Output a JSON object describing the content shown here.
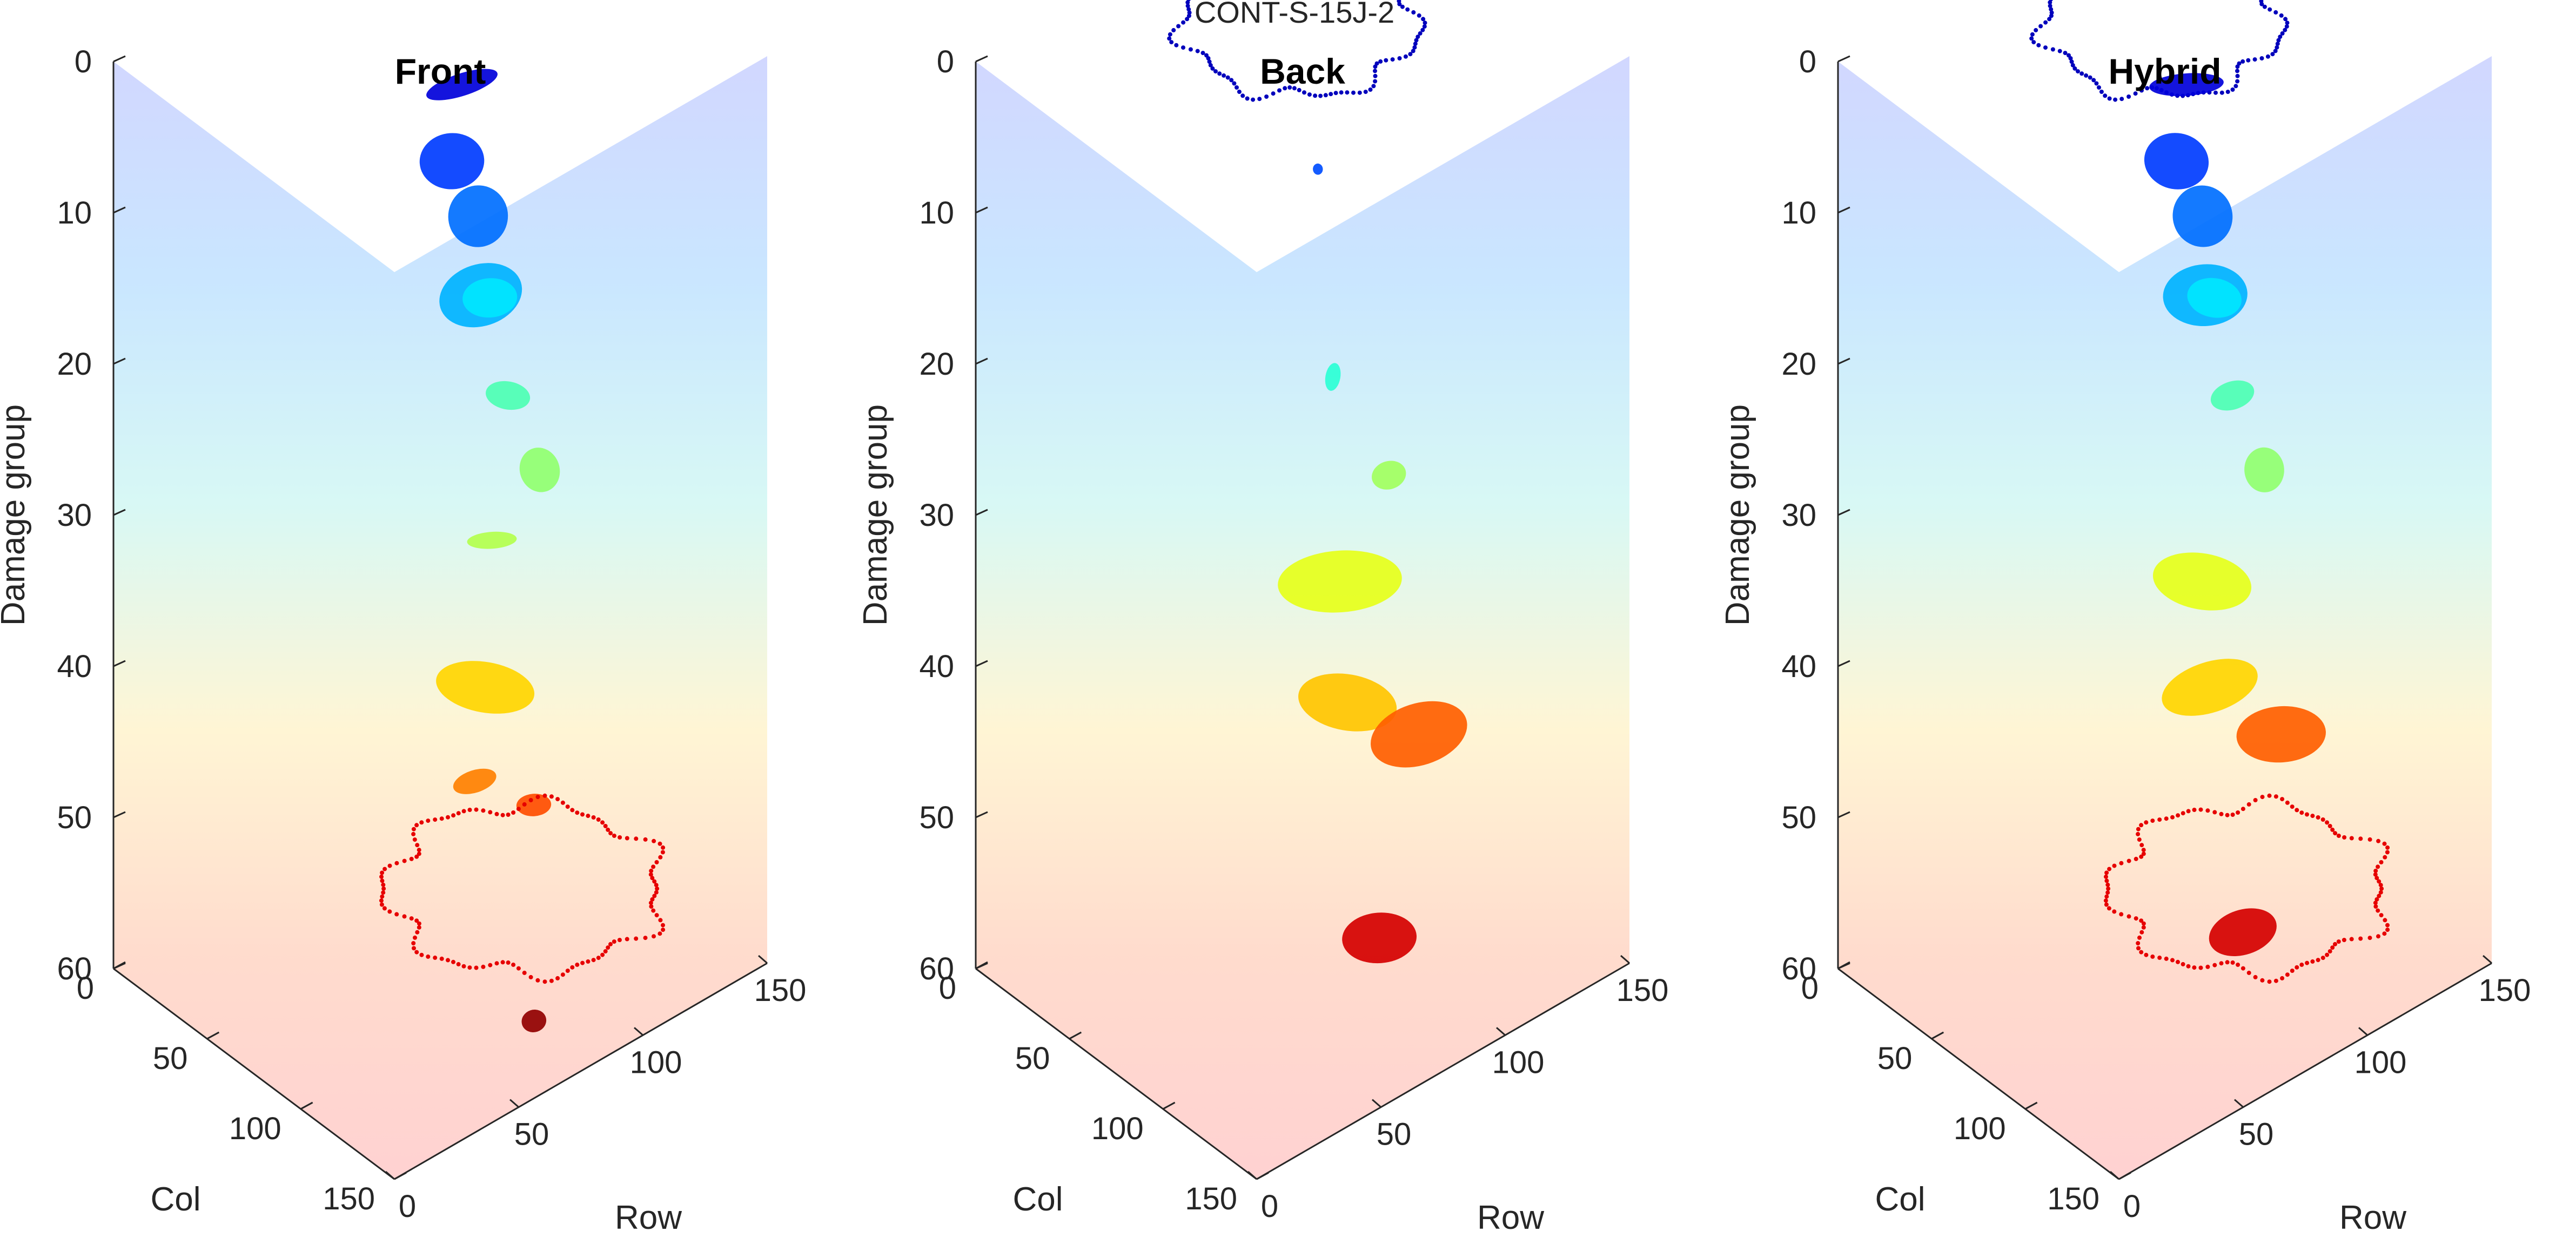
{
  "figure": {
    "title": "CONT-S-15J-2"
  },
  "colors": {
    "axis": "#262626",
    "text": "#262626",
    "colormap": [
      "#00008f",
      "#0000ff",
      "#0080ff",
      "#00ffff",
      "#80ff80",
      "#ffff00",
      "#ff8000",
      "#ff0000",
      "#800000"
    ]
  },
  "chart_data": [
    {
      "type": "scatter3d",
      "title": "Front",
      "xlabel": "Row",
      "ylabel": "Col",
      "zlabel": "Damage group",
      "xlim": [
        0,
        150
      ],
      "ylim": [
        0,
        150
      ],
      "zlim": [
        0,
        60
      ],
      "z_direction": "reversed",
      "xticks": [
        "0",
        "50",
        "100",
        "150"
      ],
      "yticks": [
        "0",
        "50",
        "100",
        "150"
      ],
      "zticks": [
        "0",
        "10",
        "20",
        "30",
        "40",
        "50",
        "60"
      ],
      "colormap": "jet (colored by damage group)",
      "background_volume": true,
      "clusters": [
        {
          "shape": "blob",
          "group": 5,
          "row": 95,
          "col": 60,
          "w": 30,
          "h": 8
        },
        {
          "shape": "blob",
          "group": 11,
          "row": 97,
          "col": 52,
          "w": 26,
          "h": 20
        },
        {
          "shape": "blob",
          "group": 14,
          "row": 100,
          "col": 62,
          "w": 24,
          "h": 22
        },
        {
          "shape": "blob",
          "group": 18,
          "row": 95,
          "col": 70,
          "w": 34,
          "h": 22
        },
        {
          "shape": "blob",
          "group": 21,
          "row": 110,
          "col": 55,
          "w": 22,
          "h": 14
        },
        {
          "shape": "blob",
          "group": 27,
          "row": 112,
          "col": 62,
          "w": 18,
          "h": 10
        },
        {
          "shape": "blob",
          "group": 31,
          "row": 115,
          "col": 75,
          "w": 16,
          "h": 16
        },
        {
          "shape": "blob",
          "group": 33,
          "row": 92,
          "col": 80,
          "w": 20,
          "h": 6
        },
        {
          "shape": "blob",
          "group": 40,
          "row": 78,
          "col": 95,
          "w": 40,
          "h": 18
        },
        {
          "shape": "blob",
          "group": 45,
          "row": 70,
          "col": 100,
          "w": 18,
          "h": 8
        },
        {
          "shape": "blob",
          "group": 48,
          "row": 90,
          "col": 105,
          "w": 14,
          "h": 8
        },
        {
          "shape": "ring",
          "group": 54,
          "row": 90,
          "col": 100,
          "w": 110,
          "h": 60
        },
        {
          "shape": "blob",
          "group": 59,
          "row": 75,
          "col": 125,
          "w": 10,
          "h": 8
        }
      ]
    },
    {
      "type": "scatter3d",
      "title": "Back",
      "xlabel": "Row",
      "ylabel": "Col",
      "zlabel": "Damage group",
      "xlim": [
        0,
        150
      ],
      "ylim": [
        0,
        150
      ],
      "zlim": [
        0,
        60
      ],
      "z_direction": "reversed",
      "xticks": [
        "0",
        "50",
        "100",
        "150"
      ],
      "yticks": [
        "0",
        "50",
        "100",
        "150"
      ],
      "zticks": [
        "0",
        "10",
        "20",
        "30",
        "40",
        "50",
        "60"
      ],
      "colormap": "jet (colored by damage group)",
      "background_volume": true,
      "clusters": [
        {
          "shape": "ring",
          "group": 3,
          "row": 100,
          "col": 40,
          "w": 95,
          "h": 55
        },
        {
          "shape": "blob",
          "group": 12,
          "row": 100,
          "col": 50,
          "w": 4,
          "h": 4
        },
        {
          "shape": "blob",
          "group": 25,
          "row": 100,
          "col": 58,
          "w": 6,
          "h": 10
        },
        {
          "shape": "blob",
          "group": 32,
          "row": 115,
          "col": 68,
          "w": 14,
          "h": 10
        },
        {
          "shape": "blob",
          "group": 36,
          "row": 90,
          "col": 75,
          "w": 50,
          "h": 22
        },
        {
          "shape": "blob",
          "group": 41,
          "row": 78,
          "col": 95,
          "w": 40,
          "h": 20
        },
        {
          "shape": "blob",
          "group": 47,
          "row": 112,
          "col": 88,
          "w": 40,
          "h": 22
        },
        {
          "shape": "blob",
          "group": 55,
          "row": 78,
          "col": 112,
          "w": 30,
          "h": 18
        }
      ]
    },
    {
      "type": "scatter3d",
      "title": "Hybrid",
      "xlabel": "Row",
      "ylabel": "Col",
      "zlabel": "Damage group",
      "xlim": [
        0,
        150
      ],
      "ylim": [
        0,
        150
      ],
      "zlim": [
        0,
        60
      ],
      "z_direction": "reversed",
      "xticks": [
        "0",
        "50",
        "100",
        "150"
      ],
      "yticks": [
        "0",
        "50",
        "100",
        "150"
      ],
      "zticks": [
        "0",
        "10",
        "20",
        "30",
        "40",
        "50",
        "60"
      ],
      "colormap": "jet (colored by damage group)",
      "background_volume": true,
      "clusters": [
        {
          "shape": "ring",
          "group": 3,
          "row": 100,
          "col": 40,
          "w": 95,
          "h": 55
        },
        {
          "shape": "blob",
          "group": 5,
          "row": 95,
          "col": 60,
          "w": 30,
          "h": 8
        },
        {
          "shape": "blob",
          "group": 11,
          "row": 97,
          "col": 52,
          "w": 26,
          "h": 20
        },
        {
          "shape": "blob",
          "group": 14,
          "row": 100,
          "col": 62,
          "w": 24,
          "h": 22
        },
        {
          "shape": "blob",
          "group": 18,
          "row": 95,
          "col": 70,
          "w": 34,
          "h": 22
        },
        {
          "shape": "blob",
          "group": 21,
          "row": 110,
          "col": 55,
          "w": 22,
          "h": 14
        },
        {
          "shape": "blob",
          "group": 27,
          "row": 112,
          "col": 62,
          "w": 18,
          "h": 10
        },
        {
          "shape": "blob",
          "group": 31,
          "row": 115,
          "col": 75,
          "w": 16,
          "h": 16
        },
        {
          "shape": "blob",
          "group": 36,
          "row": 90,
          "col": 75,
          "w": 40,
          "h": 20
        },
        {
          "shape": "blob",
          "group": 40,
          "row": 78,
          "col": 95,
          "w": 40,
          "h": 18
        },
        {
          "shape": "blob",
          "group": 47,
          "row": 112,
          "col": 88,
          "w": 36,
          "h": 20
        },
        {
          "shape": "ring",
          "group": 54,
          "row": 90,
          "col": 100,
          "w": 110,
          "h": 60
        },
        {
          "shape": "blob",
          "group": 55,
          "row": 80,
          "col": 110,
          "w": 28,
          "h": 16
        }
      ]
    }
  ]
}
